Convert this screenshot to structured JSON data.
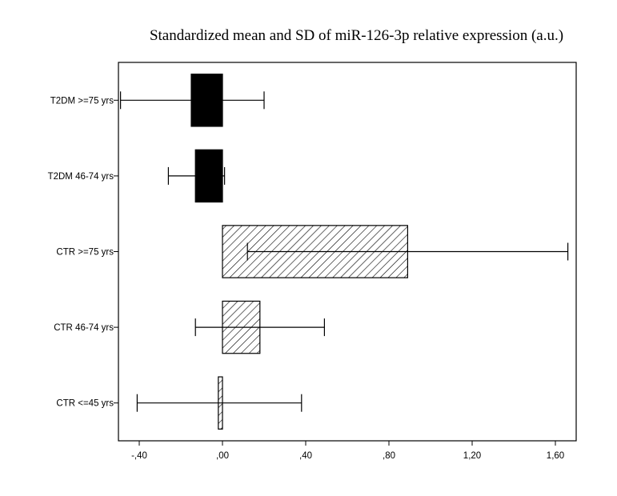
{
  "chart_data": {
    "type": "bar",
    "orientation": "horizontal",
    "title": "Standardized mean and SD of miR-126-3p relative  expression (a.u.)",
    "xlabel": "",
    "ylabel": "",
    "xlim": [
      -0.5,
      1.7
    ],
    "xticks": [
      -0.4,
      0.0,
      0.4,
      0.8,
      1.2,
      1.6
    ],
    "xtick_labels": [
      "-,40",
      ",00",
      ",40",
      ",80",
      "1,20",
      "1,60"
    ],
    "categories": [
      "T2DM >=75 yrs",
      "T2DM 46-74 yrs",
      "CTR >=75 yrs",
      "CTR 46-74 yrs",
      "CTR <=45 yrs"
    ],
    "values": [
      -0.15,
      -0.13,
      0.89,
      0.18,
      -0.02
    ],
    "error_low": [
      -0.49,
      -0.26,
      0.12,
      -0.13,
      -0.41
    ],
    "error_high": [
      0.2,
      0.01,
      1.66,
      0.49,
      0.38
    ],
    "fills": [
      "solid",
      "solid",
      "hatched",
      "hatched",
      "hatched"
    ],
    "colors": {
      "solid": "#000000",
      "hatch": "#000000",
      "background": "#ffffff"
    },
    "grid": false,
    "legend": "none"
  }
}
